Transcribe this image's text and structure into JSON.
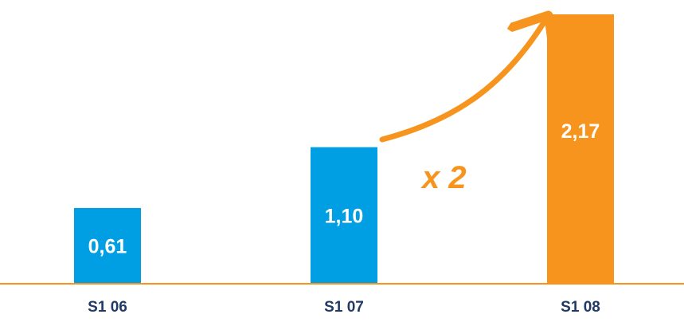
{
  "chart_data": {
    "type": "bar",
    "categories": [
      "S1 06",
      "S1 07",
      "S1 08"
    ],
    "values": [
      0.61,
      1.1,
      2.17
    ],
    "value_labels": [
      "0,61",
      "1,10",
      "2,17"
    ],
    "title": "",
    "xlabel": "",
    "ylabel": "",
    "ylim": [
      0,
      2.17
    ],
    "grid": false,
    "legend": "none",
    "annotation": {
      "text": "x 2",
      "color": "#f7941d",
      "arrow_from": "S1 07",
      "arrow_to": "S1 08"
    },
    "bar_colors": [
      "#009fe3",
      "#009fe3",
      "#f7941d"
    ],
    "axis_color": "#f7941d",
    "label_color": "#1f3a68"
  }
}
